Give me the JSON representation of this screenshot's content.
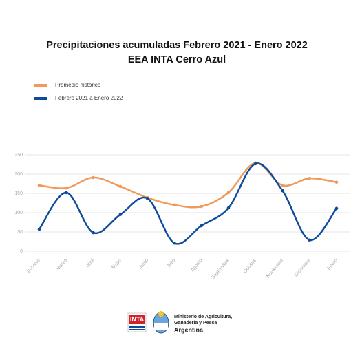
{
  "chart_data": {
    "type": "line",
    "title": "Precipitaciones acumuladas Febrero 2021 - Enero 2022",
    "subtitle": "EEA INTA Cerro Azul",
    "categories": [
      "Febrero",
      "Marzo",
      "Abril",
      "Mayo",
      "Junio",
      "Julio",
      "Agosto",
      "Septiembre",
      "Octubre",
      "Noviembre",
      "Diciembre",
      "Enero"
    ],
    "series": [
      {
        "name": "Promedio histórico",
        "color": "#f0995a",
        "values": [
          171,
          164,
          191,
          168,
          139,
          120,
          116,
          152,
          229,
          171,
          189,
          179
        ]
      },
      {
        "name": "Febrero 2021 a Enero 2022",
        "color": "#0d4c9a",
        "values": [
          57,
          152,
          48,
          95,
          137,
          21,
          66,
          112,
          227,
          157,
          29,
          111
        ]
      }
    ],
    "ylim": [
      0,
      250
    ],
    "yticks": [
      0,
      50,
      100,
      150,
      200,
      250
    ],
    "grid": true,
    "legend": "top-left"
  },
  "footer": {
    "logo": "INTA",
    "ministry_line1": "Ministerio de Agricultura,",
    "ministry_line2": "Ganadería y Pesca",
    "country": "Argentina"
  }
}
